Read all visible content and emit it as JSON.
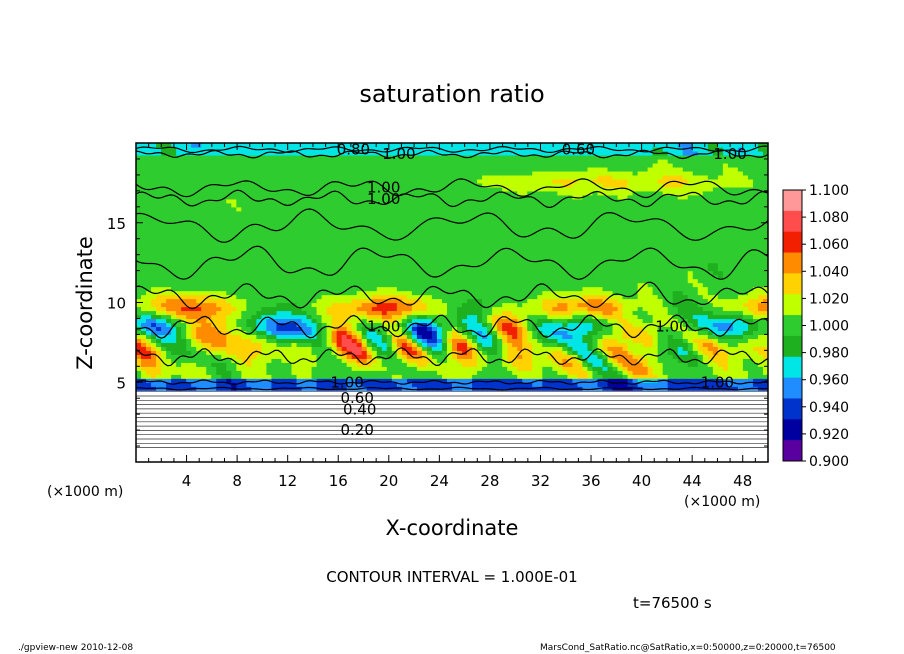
{
  "chart_data": {
    "type": "heatmap",
    "title": "saturation ratio",
    "xlabel": "X-coordinate",
    "ylabel": "Z-coordinate",
    "x_unit_left": "(×1000 m)",
    "x_unit_right": "(×1000 m)",
    "xlim": [
      0,
      50
    ],
    "ylim": [
      0,
      20
    ],
    "x_ticks": [
      4,
      8,
      12,
      16,
      20,
      24,
      28,
      32,
      36,
      40,
      44,
      48
    ],
    "y_ticks": [
      5,
      10,
      15
    ],
    "colorbar": {
      "labels": [
        "1.100",
        "1.080",
        "1.060",
        "1.040",
        "1.020",
        "1.000",
        "0.980",
        "0.960",
        "0.940",
        "0.920",
        "0.900"
      ],
      "colors": [
        "#ff9999",
        "#ff4d4d",
        "#f21f00",
        "#ff8c00",
        "#ffd200",
        "#bfff00",
        "#2ecc2e",
        "#1fb01f",
        "#00e5e5",
        "#1f8cff",
        "#0033cc",
        "#0000a0",
        "#5a00a0"
      ],
      "vmin": 0.9,
      "vmax": 1.1
    },
    "contour_labels": [
      {
        "text": "0.20",
        "x": 17.5,
        "z": 2.0
      },
      {
        "text": "0.40",
        "x": 17.7,
        "z": 3.3
      },
      {
        "text": "0.60",
        "x": 17.5,
        "z": 4.0
      },
      {
        "text": "1.00",
        "x": 16.7,
        "z": 5.0
      },
      {
        "text": "1.00",
        "x": 19.6,
        "z": 8.5
      },
      {
        "text": "1.00",
        "x": 19.6,
        "z": 16.5
      },
      {
        "text": "1.00",
        "x": 19.6,
        "z": 17.2
      },
      {
        "text": "0.60",
        "x": 35.0,
        "z": 19.6
      },
      {
        "text": "0.80",
        "x": 17.2,
        "z": 19.6
      },
      {
        "text": "1.00",
        "x": 20.8,
        "z": 19.3
      },
      {
        "text": "1.00",
        "x": 47.0,
        "z": 19.3
      },
      {
        "text": "1.00",
        "x": 42.4,
        "z": 8.5
      },
      {
        "text": "1.00",
        "x": 46.0,
        "z": 5.0
      }
    ],
    "background_contours": [
      0.2,
      0.4,
      0.6,
      0.8
    ]
  },
  "footer": {
    "contour_interval": "CONTOUR INTERVAL = 1.000E-01",
    "time": "t=76500 s",
    "program": "./gpview-new   2010-12-08",
    "source": "MarsCond_SatRatio.nc@SatRatio,x=0:50000,z=0:20000,t=76500"
  }
}
